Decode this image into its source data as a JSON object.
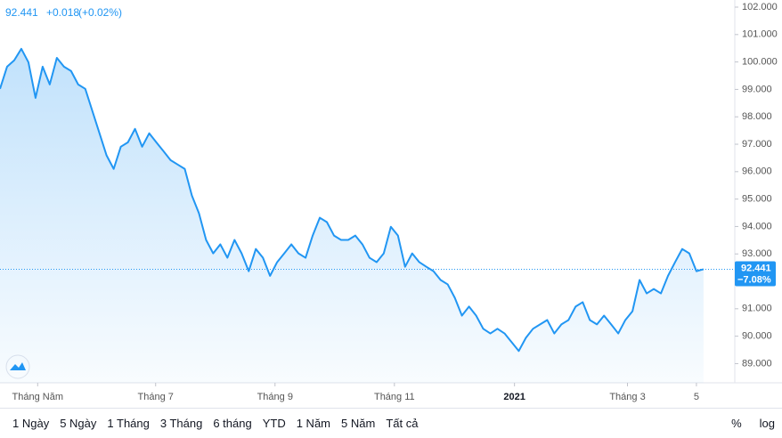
{
  "chart_data": {
    "type": "area",
    "header": {
      "last": "92.441",
      "change": "+0.018",
      "change_pct": "(+0.02%)"
    },
    "color": "#2196f3",
    "values": [
      99.02,
      99.83,
      100.06,
      100.48,
      99.99,
      98.69,
      99.83,
      99.18,
      100.15,
      99.83,
      99.67,
      99.18,
      99.02,
      98.21,
      97.4,
      96.59,
      96.1,
      96.91,
      97.07,
      97.56,
      96.91,
      97.4,
      97.07,
      96.75,
      96.42,
      96.26,
      96.1,
      95.13,
      94.48,
      93.51,
      93.02,
      93.35,
      92.86,
      93.51,
      93.02,
      92.37,
      93.18,
      92.86,
      92.2,
      92.7,
      93.02,
      93.35,
      93.02,
      92.86,
      93.67,
      94.32,
      94.16,
      93.67,
      93.51,
      93.51,
      93.67,
      93.35,
      92.86,
      92.7,
      93.02,
      93.99,
      93.67,
      92.53,
      93.02,
      92.7,
      92.53,
      92.37,
      92.05,
      91.89,
      91.4,
      90.75,
      91.08,
      90.75,
      90.27,
      90.1,
      90.27,
      90.1,
      89.78,
      89.46,
      89.94,
      90.27,
      90.43,
      90.59,
      90.1,
      90.43,
      90.59,
      91.08,
      91.24,
      90.59,
      90.43,
      90.75,
      90.43,
      90.1,
      90.59,
      90.91,
      92.05,
      91.56,
      91.72,
      91.56,
      92.2,
      92.7,
      93.18,
      93.02,
      92.37,
      92.441
    ],
    "last_value": 92.441,
    "last_change_label": "−7.08%",
    "xlim": [
      0,
      103.4
    ],
    "xticks": [
      {
        "value": 5.3,
        "label": "Tháng Năm"
      },
      {
        "value": 21.9,
        "label": "Tháng 7"
      },
      {
        "value": 38.7,
        "label": "Tháng 9"
      },
      {
        "value": 55.5,
        "label": "Tháng 11"
      },
      {
        "value": 72.4,
        "label": "2021"
      },
      {
        "value": 88.3,
        "label": "Tháng 3"
      },
      {
        "value": 98,
        "label": "5"
      }
    ],
    "ylim": [
      88.3,
      102.26
    ],
    "yticks": [
      {
        "value": 89,
        "label": "89.000"
      },
      {
        "value": 90,
        "label": "90.000"
      },
      {
        "value": 91,
        "label": "91.000"
      },
      {
        "value": 93,
        "label": "93.000"
      },
      {
        "value": 94,
        "label": "94.000"
      },
      {
        "value": 95,
        "label": "95.000"
      },
      {
        "value": 96,
        "label": "96.000"
      },
      {
        "value": 97,
        "label": "97.000"
      },
      {
        "value": 98,
        "label": "98.000"
      },
      {
        "value": 99,
        "label": "99.000"
      },
      {
        "value": 100,
        "label": "100.000"
      },
      {
        "value": 101,
        "label": "101.000"
      },
      {
        "value": 102,
        "label": "102.000"
      }
    ]
  },
  "toolbar": {
    "ranges": [
      "1 Ngày",
      "5 Ngày",
      "1 Tháng",
      "3 Tháng",
      "6 tháng",
      "YTD",
      "1 Năm",
      "5 Năm",
      "Tất cả"
    ],
    "percent": "%",
    "log": "log"
  }
}
